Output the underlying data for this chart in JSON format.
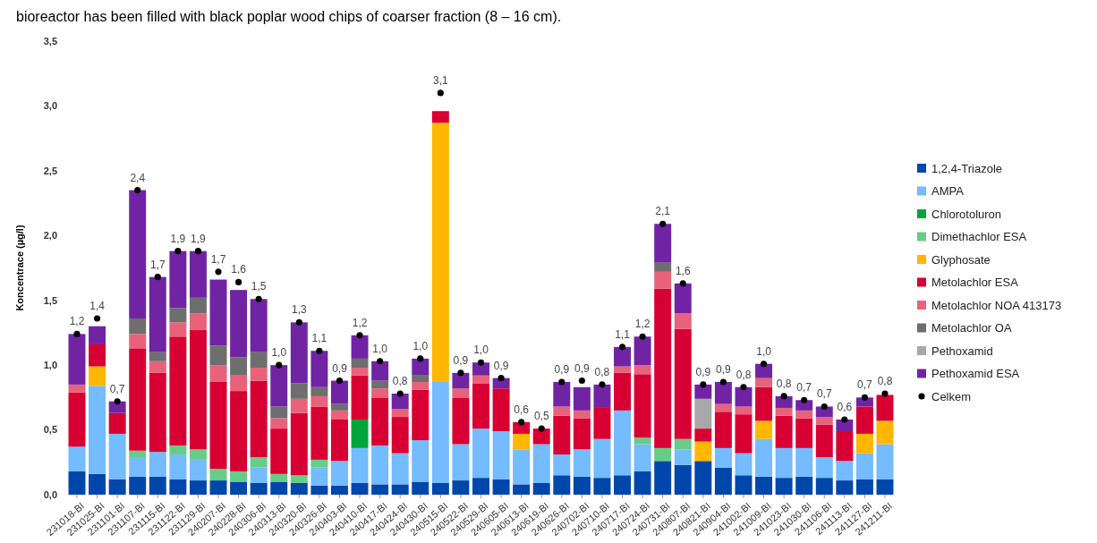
{
  "chart_data": {
    "type": "bar",
    "stacked": true,
    "title": "bioreactor has been filled with black poplar wood chips of coarser fraction (8 – 16 cm).",
    "ylabel": "Koncentrace (µg/l)",
    "legend": "right",
    "ylim": [
      0,
      3.5
    ],
    "yticks": [
      {
        "value": 0,
        "label": "0,0"
      },
      {
        "value": 0.5,
        "label": "0,5"
      },
      {
        "value": 1,
        "label": "1,0"
      },
      {
        "value": 1.5,
        "label": "1,5"
      },
      {
        "value": 2,
        "label": "2,0"
      },
      {
        "value": 2.5,
        "label": "2,5"
      },
      {
        "value": 3,
        "label": "3,0"
      },
      {
        "value": 3.5,
        "label": "3,5"
      }
    ],
    "categories": [
      "231018-BI",
      "231025-BI",
      "231101-BI",
      "231107-BI",
      "231115-BI",
      "231122-BI",
      "231129-BI",
      "240207-BI",
      "240228-BI",
      "240306-BI",
      "240313-BI",
      "240320-BI",
      "240326-BI",
      "240403-BI",
      "240410-BI",
      "240417-BI",
      "240424-BI",
      "240430-BI",
      "240515-BI",
      "240522-BI",
      "240529-BI",
      "240605-BI",
      "240613-BI",
      "240619-BI",
      "240626-BI",
      "240702-BI",
      "240710-BI",
      "240717-BI",
      "240724-BI",
      "240731-BI",
      "240807-BI",
      "240821-BI",
      "240904-BI",
      "241002-BI",
      "241009-BI",
      "241023-BI",
      "241030-BI",
      "241106-BI",
      "241113-BI",
      "241127-BI",
      "241211-BI"
    ],
    "series": [
      {
        "name": "1,2,4-Triazole",
        "color": "#0047ab",
        "values": [
          0.18,
          0.16,
          0.12,
          0.14,
          0.14,
          0.12,
          0.11,
          0.11,
          0.1,
          0.09,
          0.1,
          0.09,
          0.07,
          0.07,
          0.09,
          0.08,
          0.08,
          0.1,
          0.09,
          0.11,
          0.13,
          0.12,
          0.08,
          0.09,
          0.15,
          0.14,
          0.13,
          0.15,
          0.18,
          0.26,
          0.23,
          0.26,
          0.21,
          0.15,
          0.14,
          0.13,
          0.14,
          0.13,
          0.11,
          0.12,
          0.12
        ]
      },
      {
        "name": "AMPA",
        "color": "#74bbff",
        "values": [
          0.19,
          0.68,
          0.35,
          0.15,
          0.19,
          0.19,
          0.16,
          null,
          null,
          0.12,
          null,
          null,
          0.14,
          0.19,
          0.27,
          0.3,
          0.24,
          0.32,
          0.78,
          0.28,
          0.38,
          0.37,
          0.27,
          0.3,
          0.16,
          0.21,
          0.3,
          0.5,
          0.21,
          null,
          0.12,
          null,
          0.15,
          0.17,
          0.29,
          0.23,
          0.22,
          0.16,
          0.15,
          0.2,
          0.27
        ]
      },
      {
        "name": "Chlorotoluron",
        "color": "#00a63c",
        "values": [
          null,
          null,
          null,
          null,
          null,
          null,
          null,
          null,
          null,
          null,
          null,
          null,
          null,
          null,
          0.22,
          null,
          null,
          null,
          null,
          null,
          null,
          null,
          null,
          null,
          null,
          null,
          null,
          null,
          null,
          null,
          null,
          null,
          null,
          null,
          null,
          null,
          null,
          null,
          null,
          null,
          null
        ]
      },
      {
        "name": "Dimethachlor ESA",
        "color": "#66cc88",
        "values": [
          null,
          null,
          null,
          0.05,
          null,
          0.07,
          0.08,
          0.09,
          0.08,
          0.08,
          0.06,
          0.06,
          0.06,
          null,
          null,
          null,
          null,
          null,
          null,
          null,
          null,
          null,
          null,
          null,
          null,
          null,
          null,
          null,
          0.05,
          0.1,
          0.08,
          null,
          null,
          null,
          null,
          null,
          null,
          null,
          null,
          null,
          null
        ]
      },
      {
        "name": "Glyphosate",
        "color": "#ffb700",
        "values": [
          null,
          0.15,
          null,
          null,
          null,
          null,
          null,
          null,
          null,
          null,
          null,
          null,
          null,
          null,
          null,
          null,
          null,
          null,
          2.0,
          null,
          null,
          null,
          0.12,
          null,
          null,
          null,
          null,
          null,
          null,
          null,
          null,
          0.15,
          null,
          null,
          0.14,
          null,
          null,
          null,
          null,
          0.15,
          0.18
        ]
      },
      {
        "name": "Metolachlor ESA",
        "color": "#d80032",
        "values": [
          0.42,
          0.17,
          0.16,
          0.79,
          0.61,
          0.84,
          0.92,
          0.67,
          0.62,
          0.59,
          0.35,
          0.48,
          0.41,
          0.32,
          0.34,
          0.37,
          0.28,
          0.39,
          0.09,
          0.36,
          0.35,
          0.33,
          0.09,
          0.12,
          0.3,
          0.24,
          0.24,
          0.29,
          0.49,
          1.23,
          0.85,
          0.1,
          0.28,
          0.3,
          0.26,
          0.25,
          0.23,
          0.25,
          0.23,
          0.21,
          0.2
        ]
      },
      {
        "name": "Metolachlor NOA 413173",
        "color": "#e8627c",
        "values": [
          0.06,
          null,
          null,
          0.11,
          0.09,
          0.11,
          0.13,
          0.13,
          0.12,
          0.1,
          0.08,
          0.11,
          0.08,
          0.07,
          0.06,
          0.07,
          0.06,
          0.06,
          null,
          0.07,
          0.06,
          null,
          null,
          null,
          0.07,
          0.06,
          null,
          0.05,
          0.07,
          0.13,
          0.12,
          null,
          0.06,
          0.06,
          0.07,
          0.06,
          0.06,
          0.06,
          null,
          null,
          null
        ]
      },
      {
        "name": "Metolachlor OA",
        "color": "#6e6e6e",
        "values": [
          null,
          null,
          null,
          0.12,
          0.07,
          0.11,
          0.12,
          0.15,
          0.14,
          0.12,
          0.09,
          0.12,
          0.07,
          0.05,
          0.07,
          0.06,
          null,
          0.05,
          null,
          null,
          null,
          null,
          null,
          null,
          null,
          null,
          null,
          null,
          null,
          0.07,
          null,
          null,
          null,
          null,
          null,
          null,
          null,
          null,
          null,
          null,
          null
        ]
      },
      {
        "name": "Pethoxamid",
        "color": "#a8a8a8",
        "values": [
          null,
          null,
          null,
          null,
          null,
          null,
          null,
          null,
          null,
          null,
          null,
          null,
          null,
          null,
          null,
          null,
          null,
          null,
          null,
          null,
          null,
          null,
          null,
          null,
          null,
          null,
          null,
          null,
          null,
          null,
          null,
          0.23,
          null,
          null,
          null,
          null,
          null,
          null,
          null,
          null,
          null
        ]
      },
      {
        "name": "Pethoxamid ESA",
        "color": "#7024a4",
        "values": [
          0.39,
          0.14,
          0.09,
          0.99,
          0.58,
          0.44,
          0.36,
          0.51,
          0.52,
          0.41,
          0.32,
          0.47,
          0.28,
          0.18,
          0.18,
          0.15,
          0.12,
          0.13,
          null,
          0.12,
          0.1,
          0.08,
          null,
          null,
          0.19,
          0.18,
          0.18,
          0.15,
          0.22,
          0.3,
          0.23,
          0.11,
          0.17,
          0.15,
          0.11,
          0.09,
          0.08,
          0.08,
          0.09,
          0.07,
          null
        ]
      },
      {
        "name": "Celkem",
        "type": "scatter",
        "marker": "circle",
        "color": "#000000",
        "values": [
          1.24,
          1.36,
          0.72,
          2.35,
          1.68,
          1.88,
          1.88,
          1.72,
          1.64,
          1.51,
          1.0,
          1.33,
          1.11,
          0.88,
          1.23,
          1.03,
          0.78,
          1.05,
          3.1,
          0.94,
          1.02,
          0.9,
          0.56,
          0.51,
          0.87,
          0.88,
          0.85,
          1.14,
          1.22,
          2.09,
          1.63,
          0.85,
          0.87,
          0.83,
          1.01,
          0.76,
          0.73,
          0.68,
          0.58,
          0.75,
          0.78
        ],
        "value_labels": [
          "1,2",
          "1,4",
          "0,7",
          "2,4",
          "1,7",
          "1,9",
          "1,9",
          "1,7",
          "1,6",
          "1,5",
          "1,0",
          "1,3",
          "1,1",
          "0,9",
          "1,2",
          "1,0",
          "0,8",
          "1,0",
          "3,1",
          "0,9",
          "1,0",
          "0,9",
          "0,6",
          "0,5",
          "0,9",
          "0,9",
          "0,8",
          "1,1",
          "1,2",
          "2,1",
          "1,6",
          "0,9",
          "0,9",
          "0,8",
          "1,0",
          "0,8",
          "0,7",
          "0,7",
          "0,6",
          "0,7",
          "0,8"
        ]
      }
    ]
  }
}
